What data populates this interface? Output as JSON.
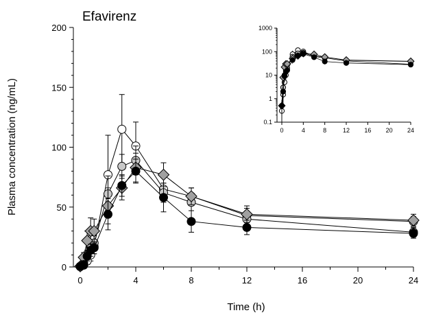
{
  "chart_data": {
    "type": "line",
    "title": "Efavirenz",
    "xlabel": "Time (h)",
    "ylabel": "Plasma concentration (ng/mL)",
    "xlim": [
      0,
      24
    ],
    "ylim": [
      0,
      200
    ],
    "x_ticks": [
      0,
      4,
      8,
      12,
      16,
      20,
      24
    ],
    "y_ticks": [
      0,
      50,
      100,
      150,
      200
    ],
    "grid": false,
    "legend": "none",
    "x": [
      0,
      0.25,
      0.5,
      0.75,
      1,
      2,
      3,
      4,
      6,
      8,
      12,
      24
    ],
    "series": [
      {
        "marker": "circle-open",
        "fill": "#ffffff",
        "values": [
          0.3,
          1.5,
          5,
          10,
          17,
          77,
          115,
          101,
          65,
          59,
          43,
          38
        ],
        "error": [
          0.2,
          1,
          3,
          5,
          6,
          33,
          29,
          20,
          10,
          7,
          6,
          4
        ]
      },
      {
        "marker": "circle-gray",
        "fill": "#c8c8c8",
        "values": [
          0.5,
          3,
          10,
          16,
          20,
          61,
          84,
          89,
          62,
          54,
          40,
          29
        ],
        "error": [
          0.3,
          2,
          4,
          5,
          6,
          15,
          10,
          12,
          8,
          7,
          5,
          4
        ]
      },
      {
        "marker": "diamond-gray",
        "fill": "#a0a0a0",
        "values": [
          0.5,
          8,
          22,
          30,
          30,
          51,
          66,
          83,
          77,
          59,
          44,
          39
        ],
        "error": [
          0.4,
          4,
          8,
          11,
          10,
          15,
          10,
          12,
          10,
          7,
          7,
          5
        ]
      },
      {
        "marker": "circle-filled",
        "fill": "#000000",
        "values": [
          0.5,
          2,
          9,
          14,
          16,
          44,
          68,
          80,
          58,
          38,
          33,
          28
        ],
        "error": [
          0.3,
          1,
          4,
          5,
          5,
          13,
          9,
          10,
          12,
          9,
          6,
          4
        ]
      }
    ],
    "inset": {
      "type": "line",
      "yscale": "log",
      "xlim": [
        0,
        24
      ],
      "ylim": [
        0.1,
        1000
      ],
      "x_ticks": [
        0,
        4,
        8,
        12,
        16,
        20,
        24
      ],
      "y_ticks": [
        0.1,
        1,
        10,
        100,
        1000
      ],
      "y_tick_labels": [
        "0.1",
        "1",
        "10",
        "100",
        "1000"
      ]
    }
  }
}
